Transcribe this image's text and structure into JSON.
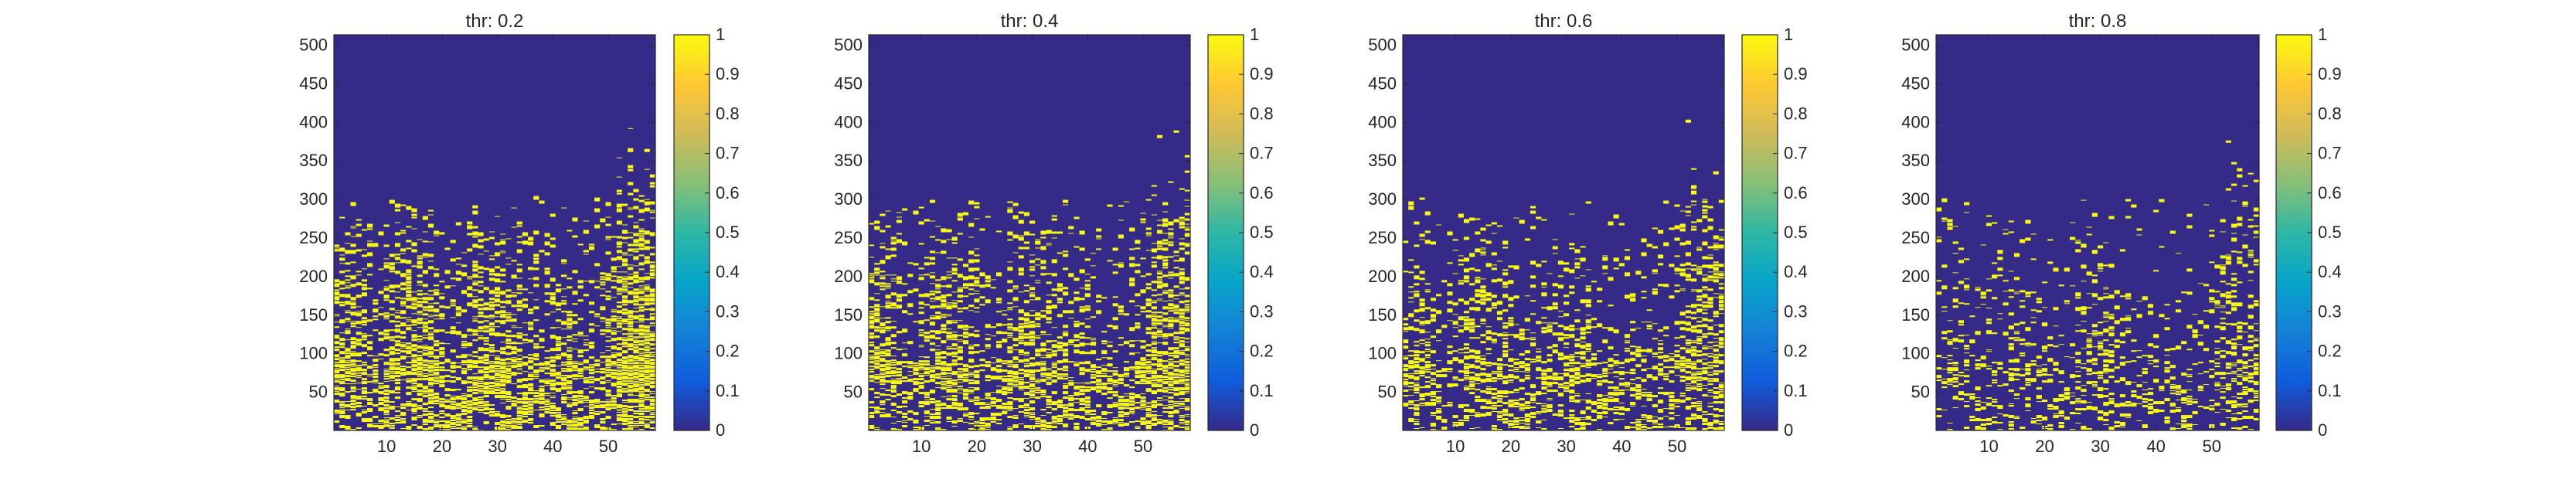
{
  "figure": {
    "background": "#ffffff",
    "axes_color": "#262626"
  },
  "colormap": {
    "name": "parula",
    "low_color": "#352a87",
    "high_color": "#f9fb0e",
    "stops": [
      "#352a87",
      "#0f5cdd",
      "#1481d6",
      "#06a4ca",
      "#2eb7a4",
      "#87bf77",
      "#d1bb59",
      "#fec832",
      "#f9fb0e"
    ]
  },
  "chart_data": [
    {
      "type": "heatmap",
      "title": "thr: 0.2",
      "threshold": 0.2,
      "x_range": [
        1,
        58
      ],
      "y_range": [
        1,
        513
      ],
      "x_ticks": [
        10,
        20,
        30,
        40,
        50
      ],
      "y_ticks": [
        50,
        100,
        150,
        200,
        250,
        300,
        350,
        400,
        450,
        500
      ],
      "colorbar": {
        "range": [
          0,
          1
        ],
        "ticks": [
          0,
          0.1,
          0.2,
          0.3,
          0.4,
          0.5,
          0.6,
          0.7,
          0.8,
          0.9,
          1
        ]
      },
      "values": "binary mask, 1 = yellow, 0 = blue; dense activity across 0-300 bins"
    },
    {
      "type": "heatmap",
      "title": "thr: 0.4",
      "threshold": 0.4,
      "x_range": [
        1,
        58
      ],
      "y_range": [
        1,
        513
      ],
      "x_ticks": [
        10,
        20,
        30,
        40,
        50
      ],
      "y_ticks": [
        50,
        100,
        150,
        200,
        250,
        300,
        350,
        400,
        450,
        500
      ],
      "colorbar": {
        "range": [
          0,
          1
        ],
        "ticks": [
          0,
          0.1,
          0.2,
          0.3,
          0.4,
          0.5,
          0.6,
          0.7,
          0.8,
          0.9,
          1
        ]
      },
      "values": "binary mask, 1 = yellow, 0 = blue"
    },
    {
      "type": "heatmap",
      "title": "thr: 0.6",
      "threshold": 0.6,
      "x_range": [
        1,
        58
      ],
      "y_range": [
        1,
        513
      ],
      "x_ticks": [
        10,
        20,
        30,
        40,
        50
      ],
      "y_ticks": [
        50,
        100,
        150,
        200,
        250,
        300,
        350,
        400,
        450,
        500
      ],
      "colorbar": {
        "range": [
          0,
          1
        ],
        "ticks": [
          0,
          0.1,
          0.2,
          0.3,
          0.4,
          0.5,
          0.6,
          0.7,
          0.8,
          0.9,
          1
        ]
      },
      "values": "binary mask, 1 = yellow, 0 = blue"
    },
    {
      "type": "heatmap",
      "title": "thr: 0.8",
      "threshold": 0.8,
      "x_range": [
        1,
        58
      ],
      "y_range": [
        1,
        513
      ],
      "x_ticks": [
        10,
        20,
        30,
        40,
        50
      ],
      "y_ticks": [
        50,
        100,
        150,
        200,
        250,
        300,
        350,
        400,
        450,
        500
      ],
      "colorbar": {
        "range": [
          0,
          1
        ],
        "ticks": [
          0,
          0.1,
          0.2,
          0.3,
          0.4,
          0.5,
          0.6,
          0.7,
          0.8,
          0.9,
          1
        ]
      },
      "values": "binary mask, 1 = yellow, 0 = blue; sparse activity"
    }
  ]
}
